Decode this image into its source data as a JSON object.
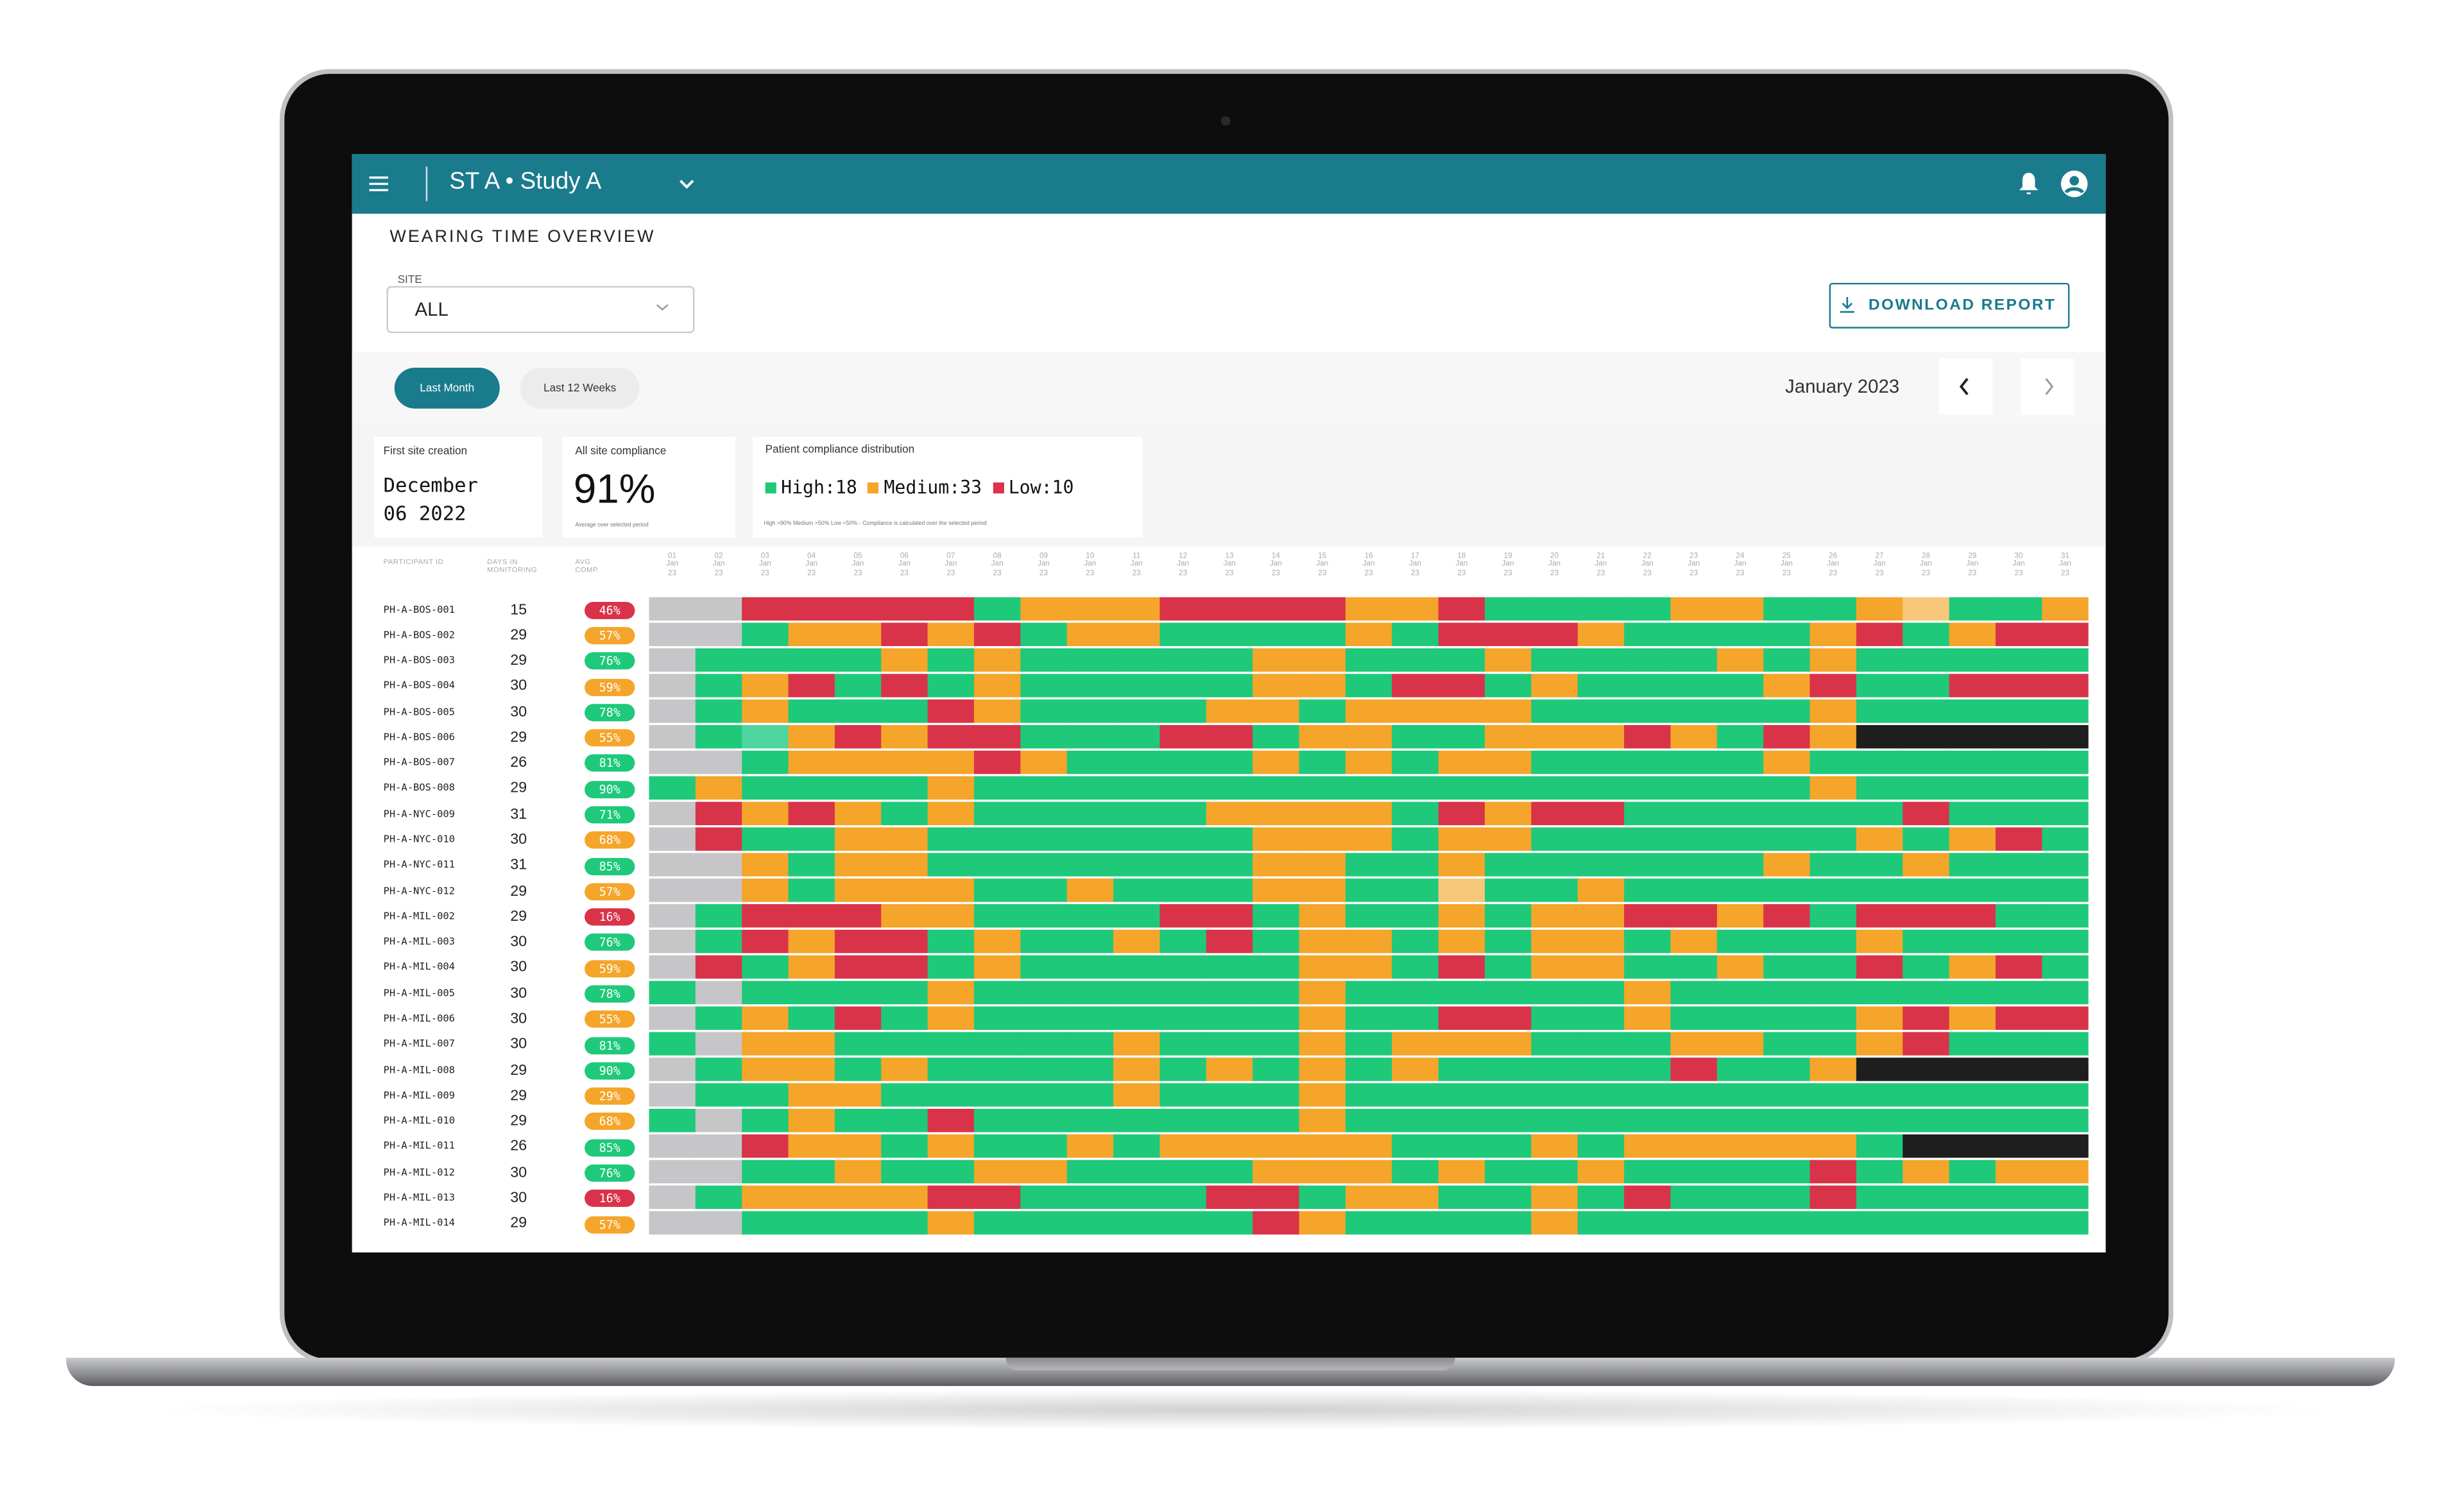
{
  "header": {
    "study": "ST A • Study A"
  },
  "page_title": "WEARING TIME OVERVIEW",
  "site_select": {
    "label": "SITE",
    "value": "ALL"
  },
  "download_button": "DOWNLOAD REPORT",
  "periods": [
    "Last Month",
    "Last 12 Weeks"
  ],
  "month": "January 2023",
  "stats": {
    "first_site": {
      "label": "First site creation",
      "line1": "December",
      "line2": "06 2022"
    },
    "compliance": {
      "label": "All site compliance",
      "value": "91%",
      "note": "Average over selected period"
    },
    "distribution": {
      "label": "Patient compliance distribution",
      "legend": [
        {
          "label": "High:18",
          "color": "#1ec97a"
        },
        {
          "label": "Medium:33",
          "color": "#f4a52a"
        },
        {
          "label": "Low:10",
          "color": "#d93349"
        }
      ],
      "note": "High >90% Medium >50% Low <50% - Compliance is calculated over the selected period"
    }
  },
  "table": {
    "columns": [
      "PARTICIPANT ID",
      "DAYS IN MONITORING",
      "AVG COMP."
    ],
    "dates": [
      "01 Jan 23",
      "02 Jan 23",
      "03 Jan 23",
      "04 Jan 23",
      "05 Jan 23",
      "06 Jan 23",
      "07 Jan 23",
      "08 Jan 23",
      "09 Jan 23",
      "10 Jan 23",
      "11 Jan 23",
      "12 Jan 23",
      "13 Jan 23",
      "14 Jan 23",
      "15 Jan 23",
      "16 Jan 23",
      "17 Jan 23",
      "18 Jan 23",
      "19 Jan 23",
      "20 Jan 23",
      "21 Jan 23",
      "22 Jan 23",
      "23 Jan 23",
      "24 Jan 23",
      "25 Jan 23",
      "26 Jan 23",
      "27 Jan 23",
      "28 Jan 23",
      "29 Jan 23",
      "30 Jan 23",
      "31 Jan 23"
    ],
    "cell_colors": {
      "G": "#1ec97a",
      "O": "#f4a52a",
      "R": "#d93349",
      "N": "#c6c6c8",
      "K": "#1e1e1e",
      "T": "#4fd6a0",
      "P": "#f7c77c"
    },
    "rows": [
      {
        "id": "PH-A-BOS-001",
        "days": 15,
        "comp": "46%",
        "level": "R",
        "cells": [
          "N",
          "N",
          "R",
          "R",
          "R",
          "R",
          "R",
          "G",
          "O",
          "O",
          "O",
          "R",
          "R",
          "R",
          "R",
          "O",
          "O",
          "R",
          "G",
          "G",
          "G",
          "G",
          "O",
          "O",
          "G",
          "G",
          "O",
          "P",
          "G",
          "G",
          "O"
        ]
      },
      {
        "id": "PH-A-BOS-002",
        "days": 29,
        "comp": "57%",
        "level": "O",
        "cells": [
          "N",
          "N",
          "G",
          "O",
          "O",
          "R",
          "O",
          "R",
          "G",
          "O",
          "O",
          "G",
          "G",
          "G",
          "G",
          "O",
          "G",
          "R",
          "R",
          "R",
          "O",
          "G",
          "G",
          "G",
          "G",
          "O",
          "R",
          "G",
          "O",
          "R",
          "R"
        ]
      },
      {
        "id": "PH-A-BOS-003",
        "days": 29,
        "comp": "76%",
        "level": "G",
        "cells": [
          "N",
          "G",
          "G",
          "G",
          "G",
          "O",
          "G",
          "O",
          "G",
          "G",
          "G",
          "G",
          "G",
          "O",
          "O",
          "G",
          "G",
          "G",
          "O",
          "G",
          "G",
          "G",
          "G",
          "O",
          "G",
          "O",
          "G",
          "G",
          "G",
          "G",
          "G"
        ]
      },
      {
        "id": "PH-A-BOS-004",
        "days": 30,
        "comp": "59%",
        "level": "O",
        "cells": [
          "N",
          "G",
          "O",
          "R",
          "G",
          "R",
          "G",
          "O",
          "G",
          "G",
          "G",
          "G",
          "G",
          "O",
          "O",
          "G",
          "R",
          "R",
          "G",
          "O",
          "G",
          "G",
          "G",
          "G",
          "O",
          "R",
          "G",
          "G",
          "R",
          "R",
          "R"
        ]
      },
      {
        "id": "PH-A-BOS-005",
        "days": 30,
        "comp": "78%",
        "level": "G",
        "cells": [
          "N",
          "G",
          "O",
          "G",
          "G",
          "G",
          "R",
          "O",
          "G",
          "G",
          "G",
          "G",
          "O",
          "O",
          "G",
          "O",
          "O",
          "O",
          "O",
          "G",
          "G",
          "G",
          "G",
          "G",
          "G",
          "O",
          "G",
          "G",
          "G",
          "G",
          "G"
        ]
      },
      {
        "id": "PH-A-BOS-006",
        "days": 29,
        "comp": "55%",
        "level": "O",
        "cells": [
          "N",
          "G",
          "T",
          "O",
          "R",
          "O",
          "R",
          "R",
          "G",
          "G",
          "G",
          "R",
          "R",
          "G",
          "O",
          "O",
          "G",
          "G",
          "O",
          "O",
          "O",
          "R",
          "O",
          "G",
          "R",
          "O",
          "K",
          "K",
          "K",
          "K",
          "K"
        ]
      },
      {
        "id": "PH-A-BOS-007",
        "days": 26,
        "comp": "81%",
        "level": "G",
        "cells": [
          "N",
          "N",
          "G",
          "O",
          "O",
          "O",
          "O",
          "R",
          "O",
          "G",
          "G",
          "G",
          "G",
          "O",
          "G",
          "O",
          "G",
          "O",
          "O",
          "G",
          "G",
          "G",
          "G",
          "G",
          "O",
          "G",
          "G",
          "G",
          "G",
          "G",
          "G"
        ]
      },
      {
        "id": "PH-A-BOS-008",
        "days": 29,
        "comp": "90%",
        "level": "G",
        "cells": [
          "G",
          "O",
          "G",
          "G",
          "G",
          "G",
          "O",
          "G",
          "G",
          "G",
          "G",
          "G",
          "G",
          "G",
          "G",
          "G",
          "G",
          "G",
          "G",
          "G",
          "G",
          "G",
          "G",
          "G",
          "G",
          "O",
          "G",
          "G",
          "G",
          "G",
          "G"
        ]
      },
      {
        "id": "PH-A-NYC-009",
        "days": 31,
        "comp": "71%",
        "level": "G",
        "cells": [
          "N",
          "R",
          "O",
          "R",
          "O",
          "G",
          "O",
          "G",
          "G",
          "G",
          "G",
          "G",
          "O",
          "O",
          "O",
          "O",
          "G",
          "R",
          "O",
          "R",
          "R",
          "G",
          "G",
          "G",
          "G",
          "G",
          "G",
          "R",
          "G",
          "G",
          "G"
        ]
      },
      {
        "id": "PH-A-NYC-010",
        "days": 30,
        "comp": "68%",
        "level": "O",
        "cells": [
          "N",
          "R",
          "G",
          "G",
          "O",
          "O",
          "G",
          "G",
          "G",
          "G",
          "G",
          "G",
          "G",
          "O",
          "O",
          "O",
          "G",
          "O",
          "O",
          "G",
          "G",
          "G",
          "G",
          "G",
          "G",
          "G",
          "O",
          "G",
          "O",
          "R",
          "G"
        ]
      },
      {
        "id": "PH-A-NYC-011",
        "days": 31,
        "comp": "85%",
        "level": "G",
        "cells": [
          "N",
          "N",
          "O",
          "G",
          "O",
          "O",
          "G",
          "G",
          "G",
          "G",
          "G",
          "G",
          "G",
          "O",
          "O",
          "G",
          "G",
          "O",
          "G",
          "G",
          "G",
          "G",
          "G",
          "G",
          "O",
          "G",
          "G",
          "O",
          "G",
          "G",
          "G"
        ]
      },
      {
        "id": "PH-A-NYC-012",
        "days": 29,
        "comp": "57%",
        "level": "O",
        "cells": [
          "N",
          "N",
          "O",
          "G",
          "O",
          "O",
          "O",
          "G",
          "G",
          "O",
          "G",
          "G",
          "G",
          "O",
          "O",
          "G",
          "G",
          "P",
          "G",
          "G",
          "O",
          "G",
          "G",
          "G",
          "G",
          "G",
          "G",
          "G",
          "G",
          "G",
          "G"
        ]
      },
      {
        "id": "PH-A-MIL-002",
        "days": 29,
        "comp": "16%",
        "level": "R",
        "cells": [
          "N",
          "G",
          "R",
          "R",
          "R",
          "O",
          "O",
          "G",
          "G",
          "G",
          "G",
          "R",
          "R",
          "G",
          "O",
          "G",
          "G",
          "O",
          "G",
          "O",
          "O",
          "R",
          "R",
          "O",
          "R",
          "G",
          "R",
          "R",
          "R",
          "G",
          "G"
        ]
      },
      {
        "id": "PH-A-MIL-003",
        "days": 30,
        "comp": "76%",
        "level": "G",
        "cells": [
          "N",
          "G",
          "R",
          "O",
          "R",
          "R",
          "G",
          "O",
          "G",
          "G",
          "O",
          "G",
          "R",
          "G",
          "O",
          "O",
          "G",
          "O",
          "G",
          "O",
          "O",
          "G",
          "O",
          "G",
          "G",
          "G",
          "O",
          "G",
          "G",
          "G",
          "G"
        ]
      },
      {
        "id": "PH-A-MIL-004",
        "days": 30,
        "comp": "59%",
        "level": "O",
        "cells": [
          "N",
          "R",
          "G",
          "O",
          "R",
          "R",
          "G",
          "O",
          "G",
          "G",
          "G",
          "G",
          "G",
          "G",
          "O",
          "O",
          "G",
          "R",
          "G",
          "O",
          "O",
          "G",
          "G",
          "O",
          "G",
          "G",
          "R",
          "G",
          "O",
          "R",
          "G"
        ]
      },
      {
        "id": "PH-A-MIL-005",
        "days": 30,
        "comp": "78%",
        "level": "G",
        "cells": [
          "G",
          "N",
          "G",
          "G",
          "G",
          "G",
          "O",
          "G",
          "G",
          "G",
          "G",
          "G",
          "G",
          "G",
          "O",
          "G",
          "G",
          "G",
          "G",
          "G",
          "G",
          "O",
          "G",
          "G",
          "G",
          "G",
          "G",
          "G",
          "G",
          "G",
          "G"
        ]
      },
      {
        "id": "PH-A-MIL-006",
        "days": 30,
        "comp": "55%",
        "level": "O",
        "cells": [
          "N",
          "G",
          "O",
          "G",
          "R",
          "G",
          "O",
          "G",
          "G",
          "G",
          "G",
          "G",
          "G",
          "G",
          "O",
          "G",
          "G",
          "R",
          "R",
          "G",
          "G",
          "O",
          "G",
          "G",
          "G",
          "G",
          "O",
          "R",
          "O",
          "R",
          "R"
        ]
      },
      {
        "id": "PH-A-MIL-007",
        "days": 30,
        "comp": "81%",
        "level": "G",
        "cells": [
          "G",
          "N",
          "O",
          "O",
          "G",
          "G",
          "G",
          "G",
          "G",
          "G",
          "O",
          "G",
          "G",
          "G",
          "O",
          "G",
          "O",
          "O",
          "O",
          "G",
          "G",
          "G",
          "O",
          "O",
          "G",
          "G",
          "O",
          "R",
          "G",
          "G",
          "G"
        ]
      },
      {
        "id": "PH-A-MIL-008",
        "days": 29,
        "comp": "90%",
        "level": "G",
        "cells": [
          "N",
          "G",
          "O",
          "O",
          "G",
          "O",
          "G",
          "G",
          "G",
          "G",
          "O",
          "G",
          "O",
          "G",
          "O",
          "G",
          "O",
          "G",
          "G",
          "G",
          "G",
          "G",
          "R",
          "G",
          "G",
          "O",
          "K",
          "K",
          "K",
          "K",
          "K"
        ]
      },
      {
        "id": "PH-A-MIL-009",
        "days": 29,
        "comp": "29%",
        "level": "O",
        "cells": [
          "N",
          "G",
          "G",
          "O",
          "O",
          "G",
          "G",
          "G",
          "G",
          "G",
          "O",
          "G",
          "G",
          "G",
          "O",
          "G",
          "G",
          "G",
          "G",
          "G",
          "G",
          "G",
          "G",
          "G",
          "G",
          "G",
          "G",
          "G",
          "G",
          "G",
          "G"
        ]
      },
      {
        "id": "PH-A-MIL-010",
        "days": 29,
        "comp": "68%",
        "level": "O",
        "cells": [
          "G",
          "N",
          "G",
          "O",
          "G",
          "G",
          "R",
          "G",
          "G",
          "G",
          "G",
          "G",
          "G",
          "G",
          "O",
          "G",
          "G",
          "G",
          "G",
          "G",
          "G",
          "G",
          "G",
          "G",
          "G",
          "G",
          "G",
          "G",
          "G",
          "G",
          "G"
        ]
      },
      {
        "id": "PH-A-MIL-011",
        "days": 26,
        "comp": "85%",
        "level": "G",
        "cells": [
          "N",
          "N",
          "R",
          "O",
          "O",
          "G",
          "O",
          "G",
          "G",
          "O",
          "G",
          "O",
          "O",
          "O",
          "O",
          "O",
          "G",
          "G",
          "G",
          "O",
          "G",
          "O",
          "O",
          "O",
          "O",
          "O",
          "G",
          "K",
          "K",
          "K",
          "K"
        ]
      },
      {
        "id": "PH-A-MIL-012",
        "days": 30,
        "comp": "76%",
        "level": "G",
        "cells": [
          "N",
          "N",
          "G",
          "G",
          "O",
          "G",
          "G",
          "O",
          "O",
          "G",
          "G",
          "G",
          "G",
          "O",
          "O",
          "O",
          "G",
          "O",
          "G",
          "G",
          "O",
          "G",
          "G",
          "G",
          "G",
          "R",
          "G",
          "O",
          "G",
          "O",
          "O"
        ]
      },
      {
        "id": "PH-A-MIL-013",
        "days": 30,
        "comp": "16%",
        "level": "R",
        "cells": [
          "N",
          "G",
          "O",
          "O",
          "O",
          "O",
          "R",
          "R",
          "G",
          "G",
          "G",
          "G",
          "R",
          "R",
          "G",
          "O",
          "O",
          "G",
          "G",
          "O",
          "G",
          "R",
          "G",
          "G",
          "G",
          "R",
          "G",
          "G",
          "G",
          "G",
          "G"
        ]
      },
      {
        "id": "PH-A-MIL-014",
        "days": 29,
        "comp": "57%",
        "level": "O",
        "cells": [
          "N",
          "N",
          "G",
          "G",
          "G",
          "G",
          "O",
          "G",
          "G",
          "G",
          "G",
          "G",
          "G",
          "R",
          "O",
          "G",
          "G",
          "G",
          "G",
          "O",
          "G",
          "G",
          "G",
          "G",
          "G",
          "G",
          "G",
          "G",
          "G",
          "G",
          "G"
        ]
      }
    ]
  }
}
